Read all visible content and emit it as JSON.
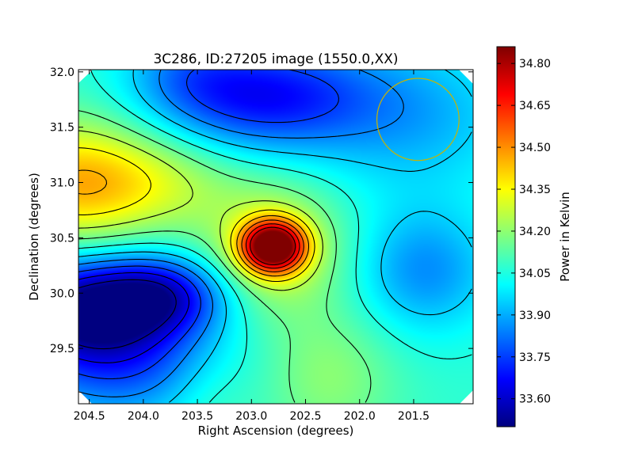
{
  "chart_data": {
    "type": "heatmap",
    "title": "3C286, ID:27205 image (1550.0,XX)",
    "xlabel": "Right Ascension (degrees)",
    "ylabel": "Declination (degrees)",
    "colorbar_label": "Power in Kelvin",
    "x_axis_reversed": true,
    "xlim": [
      204.6,
      200.95
    ],
    "ylim": [
      29.0,
      32.02
    ],
    "x_ticks": [
      204.5,
      204.0,
      203.5,
      203.0,
      202.5,
      202.0,
      201.5
    ],
    "x_tick_labels": [
      "204.5",
      "204.0",
      "203.5",
      "203.0",
      "202.5",
      "202.0",
      "201.5"
    ],
    "y_ticks": [
      29.5,
      30.0,
      30.5,
      31.0,
      31.5,
      32.0
    ],
    "y_tick_labels": [
      "29.5",
      "30.0",
      "30.5",
      "31.0",
      "31.5",
      "32.0"
    ],
    "colorbar_range": [
      33.5,
      34.86
    ],
    "colorbar_ticks": [
      33.6,
      33.75,
      33.9,
      34.05,
      34.2,
      34.35,
      34.5,
      34.65,
      34.8
    ],
    "colorbar_tick_labels": [
      "33.60",
      "33.75",
      "33.90",
      "34.05",
      "34.20",
      "34.35",
      "34.50",
      "34.65",
      "34.80"
    ],
    "colormap": "jet",
    "contour_color": "#000000",
    "circle_color": "#c8b400",
    "field_features": [
      {
        "kind": "peak",
        "ra": 202.8,
        "dec": 30.42,
        "value": 34.86
      },
      {
        "kind": "high",
        "ra": 204.6,
        "dec": 31.0,
        "value": 34.45
      },
      {
        "kind": "low",
        "ra": 204.6,
        "dec": 29.8,
        "value": 33.5
      },
      {
        "kind": "low",
        "ra": 203.9,
        "dec": 29.95,
        "value": 33.58
      },
      {
        "kind": "low",
        "ra": 202.9,
        "dec": 31.75,
        "value": 33.64
      },
      {
        "kind": "low",
        "ra": 201.4,
        "dec": 30.2,
        "value": 33.86
      },
      {
        "kind": "high",
        "ra": 202.4,
        "dec": 29.3,
        "value": 34.18
      }
    ],
    "circle": {
      "ra": 201.46,
      "dec": 31.57,
      "radius_deg": 0.38
    }
  }
}
